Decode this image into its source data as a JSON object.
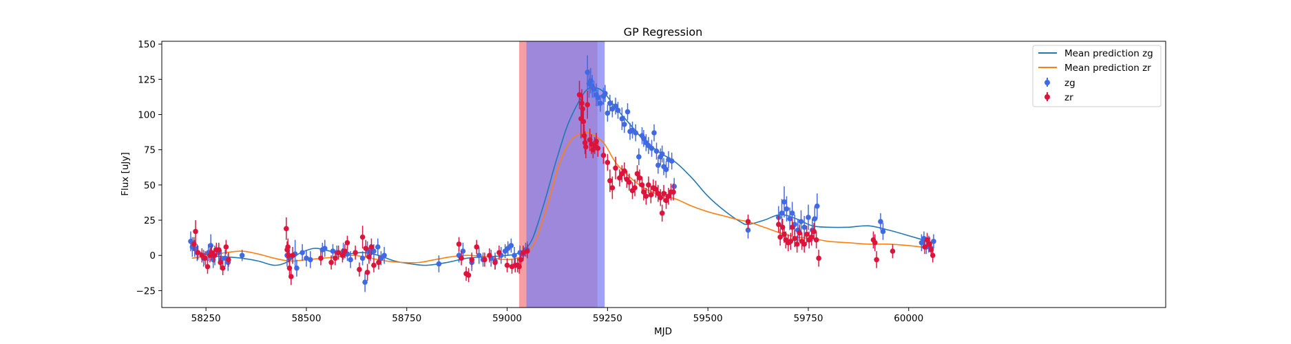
{
  "chart_data": {
    "type": "scatter",
    "title": "GP Regression",
    "xlabel": "MJD",
    "ylabel": "Flux [uJy]",
    "xlim": [
      58140,
      60640
    ],
    "ylim": [
      -37,
      152
    ],
    "xticks": [
      58250,
      58500,
      58750,
      59000,
      59250,
      59500,
      59750,
      60000
    ],
    "yticks": [
      -25,
      0,
      25,
      50,
      75,
      100,
      125,
      150
    ],
    "grid": false,
    "legend_position": "top-right",
    "shaded_regions": [
      {
        "x0": 59030,
        "x1": 59225,
        "color": "#f08080",
        "band": "zr"
      },
      {
        "x0": 59048,
        "x1": 59243,
        "color": "#8080f0",
        "band": "zg"
      }
    ],
    "series": [
      {
        "name": "Mean prediction zg",
        "kind": "line",
        "color": "#1f77b4",
        "x": [
          58215,
          58260,
          58300,
          58340,
          58380,
          58420,
          58450,
          58480,
          58520,
          58560,
          58600,
          58640,
          58680,
          58720,
          58760,
          58800,
          58850,
          58900,
          58950,
          59000,
          59030,
          59060,
          59090,
          59120,
          59150,
          59180,
          59200,
          59220,
          59240,
          59270,
          59300,
          59340,
          59380,
          59420,
          59460,
          59500,
          59540,
          59580,
          59600,
          59640,
          59680,
          59720,
          59760,
          59800,
          59850,
          59900,
          59950,
          60000,
          60060
        ],
        "y": [
          4,
          0,
          -1,
          -2,
          -4,
          -7,
          -5,
          1,
          5,
          3,
          1,
          2,
          0,
          -4,
          -6,
          -7,
          -5,
          -2,
          -1,
          0,
          2,
          10,
          35,
          65,
          92,
          110,
          118,
          119,
          116,
          105,
          95,
          82,
          73,
          66,
          55,
          42,
          32,
          24,
          22,
          25,
          29,
          26,
          21,
          20,
          20,
          21,
          18,
          14,
          9
        ]
      },
      {
        "name": "Mean prediction zr",
        "kind": "line",
        "color": "#ff7f0e",
        "x": [
          58215,
          58260,
          58300,
          58340,
          58380,
          58420,
          58460,
          58500,
          58540,
          58580,
          58620,
          58660,
          58700,
          58740,
          58780,
          58820,
          58860,
          58900,
          58950,
          59000,
          59040,
          59070,
          59100,
          59130,
          59160,
          59190,
          59210,
          59240,
          59270,
          59300,
          59340,
          59380,
          59420,
          59460,
          59500,
          59540,
          59580,
          59600,
          59640,
          59680,
          59720,
          59760,
          59800,
          59850,
          59900,
          59950,
          60000,
          60060
        ],
        "y": [
          -2,
          0,
          2,
          3,
          1,
          -2,
          -4,
          -3,
          -2,
          -1,
          0,
          -2,
          -4,
          -5,
          -5,
          -3,
          -1,
          0,
          -1,
          -3,
          0,
          10,
          35,
          65,
          82,
          87,
          86,
          80,
          66,
          57,
          48,
          43,
          40,
          35,
          31,
          28,
          25,
          24,
          20,
          16,
          13,
          12,
          10,
          9,
          8,
          8,
          7,
          5
        ]
      },
      {
        "name": "zg",
        "kind": "errorbar",
        "color": "#4169e1",
        "x": [
          58212,
          58216,
          58222,
          58228,
          58244,
          58256,
          58262,
          58268,
          58272,
          58282,
          58288,
          58298,
          58305,
          58340,
          58452,
          58458,
          58472,
          58476,
          58490,
          58500,
          58510,
          58540,
          58546,
          58566,
          58576,
          58592,
          58602,
          58610,
          58640,
          58646,
          58652,
          58660,
          58668,
          58678,
          58686,
          58694,
          58830,
          58880,
          58890,
          58912,
          58930,
          58940,
          58960,
          58970,
          58985,
          58995,
          59002,
          59010,
          59018,
          59032,
          59040,
          59046,
          59050,
          59200,
          59204,
          59208,
          59212,
          59216,
          59222,
          59226,
          59232,
          59240,
          59244,
          59250,
          59256,
          59262,
          59270,
          59276,
          59286,
          59292,
          59300,
          59306,
          59312,
          59320,
          59328,
          59336,
          59340,
          59346,
          59352,
          59360,
          59366,
          59372,
          59376,
          59382,
          59386,
          59390,
          59396,
          59402,
          59410,
          59416,
          59600,
          59676,
          59684,
          59690,
          59696,
          59704,
          59710,
          59716,
          59724,
          59732,
          59740,
          59750,
          59760,
          59766,
          59772,
          59930,
          59936,
          60032,
          60038,
          60044,
          60050,
          60056,
          60062
        ],
        "y": [
          10,
          6,
          5,
          2,
          -2,
          2,
          7,
          -3,
          0,
          2,
          -3,
          -2,
          -5,
          0,
          0,
          -2,
          1,
          -9,
          2,
          -2,
          -3,
          4,
          5,
          3,
          2,
          3,
          1,
          -3,
          -2,
          -19,
          4,
          2,
          3,
          6,
          -2,
          0,
          -6,
          0,
          3,
          -5,
          0,
          -3,
          -2,
          -4,
          0,
          3,
          5,
          7,
          0,
          2,
          1,
          4,
          4,
          130,
          122,
          124,
          120,
          118,
          114,
          112,
          108,
          113,
          115,
          101,
          108,
          104,
          106,
          103,
          97,
          93,
          102,
          88,
          89,
          87,
          70,
          85,
          83,
          80,
          78,
          76,
          87,
          74,
          64,
          70,
          72,
          63,
          61,
          68,
          67,
          49,
          18,
          27,
          30,
          38,
          33,
          26,
          30,
          22,
          18,
          24,
          20,
          27,
          18,
          26,
          35,
          24,
          17,
          9,
          12,
          6,
          8,
          5,
          10
        ],
        "err": [
          7,
          7,
          6,
          6,
          6,
          6,
          8,
          6,
          7,
          6,
          7,
          6,
          6,
          4,
          8,
          6,
          10,
          6,
          6,
          6,
          6,
          5,
          6,
          5,
          5,
          6,
          5,
          6,
          5,
          7,
          6,
          6,
          5,
          6,
          5,
          6,
          6,
          5,
          6,
          6,
          6,
          5,
          6,
          6,
          6,
          5,
          5,
          5,
          6,
          5,
          5,
          5,
          6,
          12,
          10,
          9,
          8,
          6,
          8,
          6,
          6,
          6,
          6,
          6,
          6,
          6,
          6,
          6,
          8,
          6,
          6,
          6,
          6,
          6,
          6,
          6,
          6,
          6,
          6,
          6,
          6,
          6,
          6,
          6,
          6,
          6,
          6,
          6,
          6,
          6,
          6,
          8,
          10,
          11,
          9,
          8,
          8,
          7,
          8,
          8,
          8,
          9,
          8,
          9,
          9,
          6,
          6,
          6,
          5,
          5,
          6,
          5,
          5
        ]
      },
      {
        "name": "zr",
        "kind": "errorbar",
        "color": "#dc143c",
        "x": [
          58220,
          58224,
          58230,
          58240,
          58248,
          58254,
          58260,
          58264,
          58270,
          58276,
          58282,
          58286,
          58292,
          58300,
          58306,
          58450,
          58452,
          58454,
          58456,
          58458,
          58462,
          58466,
          58536,
          58562,
          58572,
          58580,
          58590,
          58596,
          58602,
          58622,
          58632,
          58640,
          58648,
          58652,
          58656,
          58662,
          58668,
          58680,
          58880,
          58886,
          58898,
          58904,
          58912,
          58924,
          58944,
          58956,
          58970,
          58980,
          59000,
          59012,
          59020,
          59026,
          59030,
          59034,
          59040,
          59050,
          59180,
          59184,
          59186,
          59188,
          59190,
          59192,
          59194,
          59196,
          59200,
          59206,
          59210,
          59214,
          59218,
          59222,
          59226,
          59240,
          59250,
          59256,
          59262,
          59270,
          59280,
          59286,
          59292,
          59298,
          59304,
          59312,
          59318,
          59324,
          59330,
          59336,
          59340,
          59346,
          59352,
          59358,
          59364,
          59370,
          59376,
          59382,
          59386,
          59390,
          59396,
          59402,
          59408,
          59414,
          59600,
          59676,
          59680,
          59686,
          59690,
          59694,
          59700,
          59706,
          59710,
          59716,
          59722,
          59728,
          59734,
          59740,
          59746,
          59752,
          59758,
          59764,
          59770,
          59776,
          59912,
          59916,
          59920,
          59960,
          60040,
          60046,
          60052,
          60056,
          60060
        ],
        "y": [
          8,
          17,
          2,
          0,
          -2,
          -8,
          0,
          2,
          0,
          4,
          4,
          -5,
          -9,
          6,
          -3,
          19,
          4,
          6,
          0,
          -9,
          -15,
          0,
          -2,
          -5,
          -2,
          2,
          0,
          3,
          9,
          2,
          -10,
          13,
          5,
          -12,
          -1,
          6,
          -7,
          -5,
          8,
          -2,
          -13,
          -14,
          -3,
          6,
          -3,
          0,
          -5,
          2,
          -7,
          -8,
          -7,
          -7,
          -8,
          -3,
          2,
          3,
          114,
          97,
          108,
          104,
          95,
          85,
          80,
          77,
          107,
          82,
          79,
          75,
          78,
          81,
          76,
          71,
          66,
          53,
          48,
          62,
          55,
          58,
          60,
          54,
          52,
          46,
          48,
          58,
          55,
          50,
          45,
          42,
          50,
          43,
          48,
          47,
          44,
          41,
          30,
          44,
          39,
          42,
          45,
          45,
          24,
          22,
          13,
          20,
          15,
          11,
          9,
          10,
          20,
          12,
          8,
          16,
          10,
          8,
          15,
          11,
          13,
          17,
          11,
          -2,
          11,
          9,
          -3,
          3,
          6,
          11,
          8,
          4,
          0
        ],
        "err": [
          5,
          8,
          5,
          5,
          5,
          5,
          5,
          5,
          5,
          5,
          5,
          5,
          5,
          5,
          5,
          8,
          6,
          6,
          5,
          6,
          6,
          6,
          5,
          5,
          5,
          5,
          5,
          5,
          5,
          5,
          5,
          8,
          6,
          6,
          5,
          6,
          5,
          5,
          5,
          5,
          5,
          5,
          5,
          5,
          5,
          5,
          5,
          5,
          5,
          5,
          5,
          5,
          5,
          5,
          5,
          5,
          10,
          14,
          10,
          10,
          9,
          8,
          8,
          8,
          10,
          8,
          7,
          6,
          6,
          6,
          6,
          6,
          6,
          8,
          8,
          8,
          6,
          6,
          6,
          6,
          6,
          6,
          6,
          6,
          6,
          6,
          6,
          6,
          6,
          6,
          6,
          6,
          6,
          6,
          6,
          6,
          6,
          6,
          6,
          6,
          5,
          6,
          6,
          6,
          6,
          6,
          6,
          6,
          6,
          6,
          6,
          6,
          6,
          6,
          6,
          6,
          6,
          6,
          6,
          6,
          6,
          6,
          6,
          5,
          5,
          5,
          5,
          5,
          5
        ]
      }
    ]
  }
}
